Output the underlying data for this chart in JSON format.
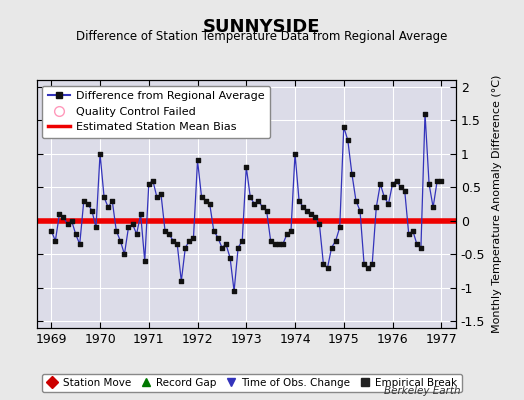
{
  "title": "SUNNYSIDE",
  "subtitle": "Difference of Station Temperature Data from Regional Average",
  "ylabel": "Monthly Temperature Anomaly Difference (°C)",
  "xlabel_years": [
    1969,
    1970,
    1971,
    1972,
    1973,
    1974,
    1975,
    1976,
    1977
  ],
  "ylim": [
    -1.6,
    2.1
  ],
  "yticks": [
    -1.5,
    -1.0,
    -0.5,
    0.0,
    0.5,
    1.0,
    1.5,
    2.0
  ],
  "mean_bias": 0.0,
  "fig_bg_color": "#e8e8e8",
  "plot_bg_color": "#dcdce8",
  "line_color": "#3333bb",
  "marker_color": "#111111",
  "bias_color": "#ee0000",
  "berkeley_earth_text": "Berkeley Earth",
  "data_x": [
    1969.0,
    1969.083,
    1969.167,
    1969.25,
    1969.333,
    1969.417,
    1969.5,
    1969.583,
    1969.667,
    1969.75,
    1969.833,
    1969.917,
    1970.0,
    1970.083,
    1970.167,
    1970.25,
    1970.333,
    1970.417,
    1970.5,
    1970.583,
    1970.667,
    1970.75,
    1970.833,
    1970.917,
    1971.0,
    1971.083,
    1971.167,
    1971.25,
    1971.333,
    1971.417,
    1971.5,
    1971.583,
    1971.667,
    1971.75,
    1971.833,
    1971.917,
    1972.0,
    1972.083,
    1972.167,
    1972.25,
    1972.333,
    1972.417,
    1972.5,
    1972.583,
    1972.667,
    1972.75,
    1972.833,
    1972.917,
    1973.0,
    1973.083,
    1973.167,
    1973.25,
    1973.333,
    1973.417,
    1973.5,
    1973.583,
    1973.667,
    1973.75,
    1973.833,
    1973.917,
    1974.0,
    1974.083,
    1974.167,
    1974.25,
    1974.333,
    1974.417,
    1974.5,
    1974.583,
    1974.667,
    1974.75,
    1974.833,
    1974.917,
    1975.0,
    1975.083,
    1975.167,
    1975.25,
    1975.333,
    1975.417,
    1975.5,
    1975.583,
    1975.667,
    1975.75,
    1975.833,
    1975.917,
    1976.0,
    1976.083,
    1976.167,
    1976.25,
    1976.333,
    1976.417,
    1976.5,
    1976.583,
    1976.667,
    1976.75,
    1976.833,
    1976.917,
    1977.0
  ],
  "data_y": [
    -0.15,
    -0.3,
    0.1,
    0.05,
    -0.05,
    0.0,
    -0.2,
    -0.35,
    0.3,
    0.25,
    0.15,
    -0.1,
    1.0,
    0.35,
    0.2,
    0.3,
    -0.15,
    -0.3,
    -0.5,
    -0.1,
    -0.05,
    -0.2,
    0.1,
    -0.6,
    0.55,
    0.6,
    0.35,
    0.4,
    -0.15,
    -0.2,
    -0.3,
    -0.35,
    -0.9,
    -0.4,
    -0.3,
    -0.25,
    0.9,
    0.35,
    0.3,
    0.25,
    -0.15,
    -0.25,
    -0.4,
    -0.35,
    -0.55,
    -1.05,
    -0.4,
    -0.3,
    0.8,
    0.35,
    0.25,
    0.3,
    0.2,
    0.15,
    -0.3,
    -0.35,
    -0.35,
    -0.35,
    -0.2,
    -0.15,
    1.0,
    0.3,
    0.2,
    0.15,
    0.1,
    0.05,
    -0.05,
    -0.65,
    -0.7,
    -0.4,
    -0.3,
    -0.1,
    1.4,
    1.2,
    0.7,
    0.3,
    0.15,
    -0.65,
    -0.7,
    -0.65,
    0.2,
    0.55,
    0.35,
    0.25,
    0.55,
    0.6,
    0.5,
    0.45,
    -0.2,
    -0.15,
    -0.35,
    -0.4,
    1.6,
    0.55,
    0.2,
    0.6,
    0.6
  ]
}
